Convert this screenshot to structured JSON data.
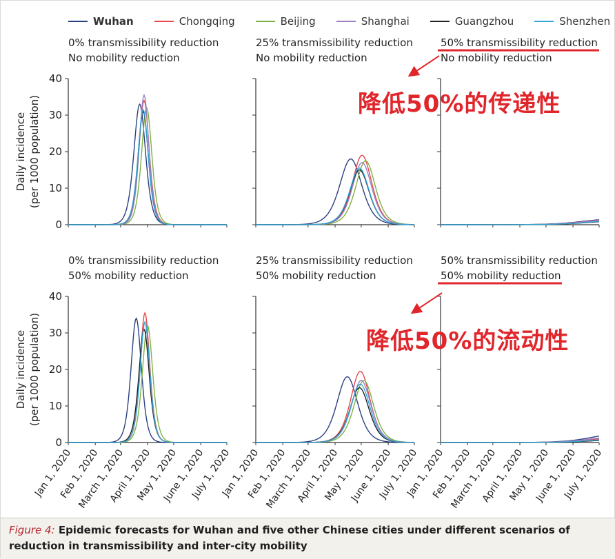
{
  "legend": [
    {
      "name": "Wuhan",
      "color": "#2a3f80"
    },
    {
      "name": "Chongqing",
      "color": "#e8474c"
    },
    {
      "name": "Beijing",
      "color": "#7cb342"
    },
    {
      "name": "Shanghai",
      "color": "#9b80c7"
    },
    {
      "name": "Guangzhou",
      "color": "#222222"
    },
    {
      "name": "Shenzhen",
      "color": "#35a6d6"
    }
  ],
  "annotations": {
    "top": "降低50%的传递性",
    "bottom": "降低50%的流动性",
    "color": "#e0262b"
  },
  "caption": {
    "label": "Figure 4:",
    "text": " Epidemic forecasts for Wuhan and five other Chinese cities under different scenarios of reduction in transmissibility and inter-city mobility"
  },
  "chart_data": {
    "type": "line",
    "xlabel": "",
    "ylabel": "Daily incidence (per 1000 population)",
    "ylim": [
      0,
      40
    ],
    "yticks": [
      0,
      10,
      20,
      30,
      40
    ],
    "xlim_days": [
      0,
      182
    ],
    "xtick_labels": [
      "Jan 1, 2020",
      "Feb 1, 2020",
      "March 1, 2020",
      "April 1, 2020",
      "May 1, 2020",
      "June 1, 2020",
      "July 1, 2020"
    ],
    "xtick_days": [
      0,
      31,
      60,
      91,
      121,
      152,
      182
    ],
    "series_model": "bell-shaped epidemic curves; each city given by peak value, peak day (days since Jan 1, 2020) and spread",
    "panels": [
      {
        "title_line1": "0% transmissibility reduction",
        "title_line2": "No mobility reduction",
        "series": [
          {
            "name": "Wuhan",
            "peak": 33,
            "peak_day": 82,
            "spread": 9
          },
          {
            "name": "Chongqing",
            "peak": 34,
            "peak_day": 87,
            "spread": 8
          },
          {
            "name": "Beijing",
            "peak": 32,
            "peak_day": 90,
            "spread": 8
          },
          {
            "name": "Shanghai",
            "peak": 35.5,
            "peak_day": 87,
            "spread": 7.5
          },
          {
            "name": "Guangzhou",
            "peak": 31,
            "peak_day": 86,
            "spread": 8
          },
          {
            "name": "Shenzhen",
            "peak": 31.5,
            "peak_day": 86,
            "spread": 8
          }
        ]
      },
      {
        "title_line1": "25% transmissibility reduction",
        "title_line2": "No mobility reduction",
        "series": [
          {
            "name": "Wuhan",
            "peak": 18,
            "peak_day": 109,
            "spread": 17
          },
          {
            "name": "Chongqing",
            "peak": 19,
            "peak_day": 122,
            "spread": 15
          },
          {
            "name": "Beijing",
            "peak": 17.5,
            "peak_day": 126,
            "spread": 15
          },
          {
            "name": "Shanghai",
            "peak": 17,
            "peak_day": 122,
            "spread": 15
          },
          {
            "name": "Guangzhou",
            "peak": 15,
            "peak_day": 119,
            "spread": 15
          },
          {
            "name": "Shenzhen",
            "peak": 15.5,
            "peak_day": 119,
            "spread": 15
          }
        ]
      },
      {
        "title_line1": "50% transmissibility reduction",
        "title_line2": "No mobility reduction",
        "title_highlight": "line1",
        "series": [
          {
            "name": "Wuhan",
            "peak": 1.4,
            "peak_day": 190,
            "spread": 40
          },
          {
            "name": "Chongqing",
            "peak": 1.3,
            "peak_day": 192,
            "spread": 40
          },
          {
            "name": "Beijing",
            "peak": 1.0,
            "peak_day": 195,
            "spread": 40
          },
          {
            "name": "Shanghai",
            "peak": 1.2,
            "peak_day": 192,
            "spread": 40
          },
          {
            "name": "Guangzhou",
            "peak": 0.9,
            "peak_day": 195,
            "spread": 40
          },
          {
            "name": "Shenzhen",
            "peak": 1.0,
            "peak_day": 195,
            "spread": 40
          }
        ]
      },
      {
        "title_line1": "0% transmissibility reduction",
        "title_line2": "50% mobility reduction",
        "series": [
          {
            "name": "Wuhan",
            "peak": 34,
            "peak_day": 78,
            "spread": 8
          },
          {
            "name": "Chongqing",
            "peak": 35.5,
            "peak_day": 88,
            "spread": 7.5
          },
          {
            "name": "Beijing",
            "peak": 32,
            "peak_day": 91,
            "spread": 8
          },
          {
            "name": "Shanghai",
            "peak": 33,
            "peak_day": 88,
            "spread": 7.5
          },
          {
            "name": "Guangzhou",
            "peak": 31,
            "peak_day": 87,
            "spread": 8
          },
          {
            "name": "Shenzhen",
            "peak": 33,
            "peak_day": 88,
            "spread": 7.5
          }
        ]
      },
      {
        "title_line1": "25% transmissibility reduction",
        "title_line2": "50% mobility reduction",
        "series": [
          {
            "name": "Wuhan",
            "peak": 18,
            "peak_day": 105,
            "spread": 16
          },
          {
            "name": "Chongqing",
            "peak": 19.5,
            "peak_day": 120,
            "spread": 15
          },
          {
            "name": "Beijing",
            "peak": 17,
            "peak_day": 124,
            "spread": 15
          },
          {
            "name": "Shanghai",
            "peak": 17,
            "peak_day": 121,
            "spread": 15
          },
          {
            "name": "Guangzhou",
            "peak": 15,
            "peak_day": 119,
            "spread": 15
          },
          {
            "name": "Shenzhen",
            "peak": 16,
            "peak_day": 120,
            "spread": 15
          }
        ]
      },
      {
        "title_line1": "50% transmissibility reduction",
        "title_line2": "50% mobility reduction",
        "title_highlight": "line2",
        "series": [
          {
            "name": "Wuhan",
            "peak": 2.2,
            "peak_day": 200,
            "spread": 38
          },
          {
            "name": "Chongqing",
            "peak": 1.2,
            "peak_day": 200,
            "spread": 40
          },
          {
            "name": "Beijing",
            "peak": 0.9,
            "peak_day": 205,
            "spread": 40
          },
          {
            "name": "Shanghai",
            "peak": 1.5,
            "peak_day": 200,
            "spread": 40
          },
          {
            "name": "Guangzhou",
            "peak": 0.8,
            "peak_day": 205,
            "spread": 40
          },
          {
            "name": "Shenzhen",
            "peak": 1.0,
            "peak_day": 205,
            "spread": 40
          }
        ]
      }
    ]
  }
}
